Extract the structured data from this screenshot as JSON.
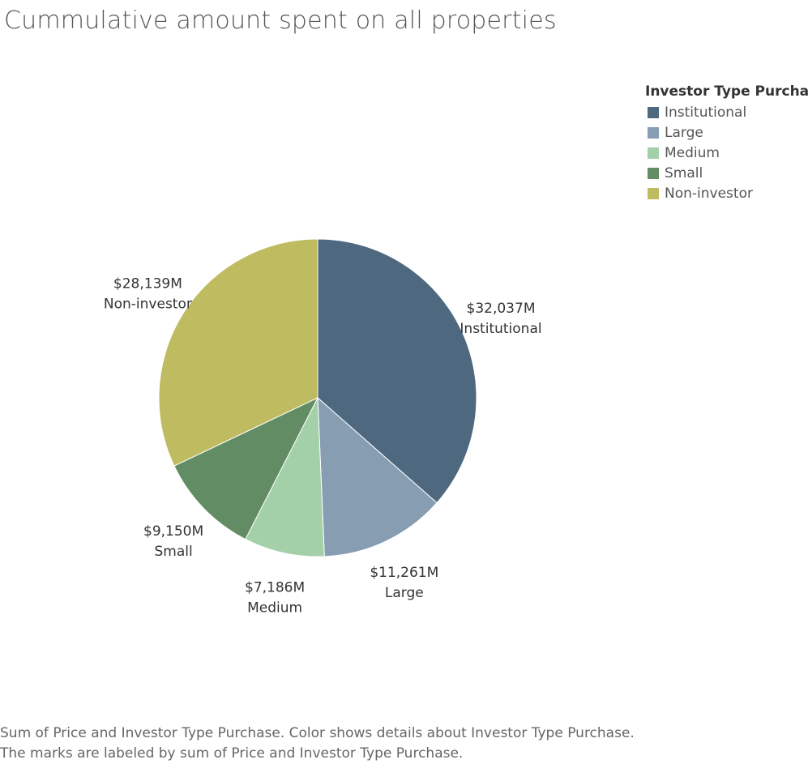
{
  "title": "Cummulative amount spent on all properties",
  "legend": {
    "title": "Investor Type Purchase",
    "items": [
      {
        "label": "Institutional",
        "color": "#4e6880"
      },
      {
        "label": "Large",
        "color": "#869db2"
      },
      {
        "label": "Medium",
        "color": "#a3cfa9"
      },
      {
        "label": "Small",
        "color": "#628d64"
      },
      {
        "label": "Non-investor",
        "color": "#bfbb60"
      }
    ]
  },
  "caption": {
    "line1": "Sum of Price and Investor Type Purchase.  Color shows details about Investor Type Purchase.",
    "line2": "The marks are labeled by sum of Price and Investor Type Purchase."
  },
  "chart_data": {
    "type": "pie",
    "title": "Cummulative amount spent on all properties",
    "legend_title": "Investor Type Purchase",
    "legend_position": "top-right",
    "unit": "$M",
    "slices": [
      {
        "label": "Institutional",
        "value": 32037,
        "display": "$32,037M",
        "color": "#4e6880"
      },
      {
        "label": "Large",
        "value": 11261,
        "display": "$11,261M",
        "color": "#869db2"
      },
      {
        "label": "Medium",
        "value": 7186,
        "display": "$7,186M",
        "color": "#a3cfa9"
      },
      {
        "label": "Small",
        "value": 9150,
        "display": "$9,150M",
        "color": "#628d64"
      },
      {
        "label": "Non-investor",
        "value": 28139,
        "display": "$28,139M",
        "color": "#bfbb60"
      }
    ]
  }
}
